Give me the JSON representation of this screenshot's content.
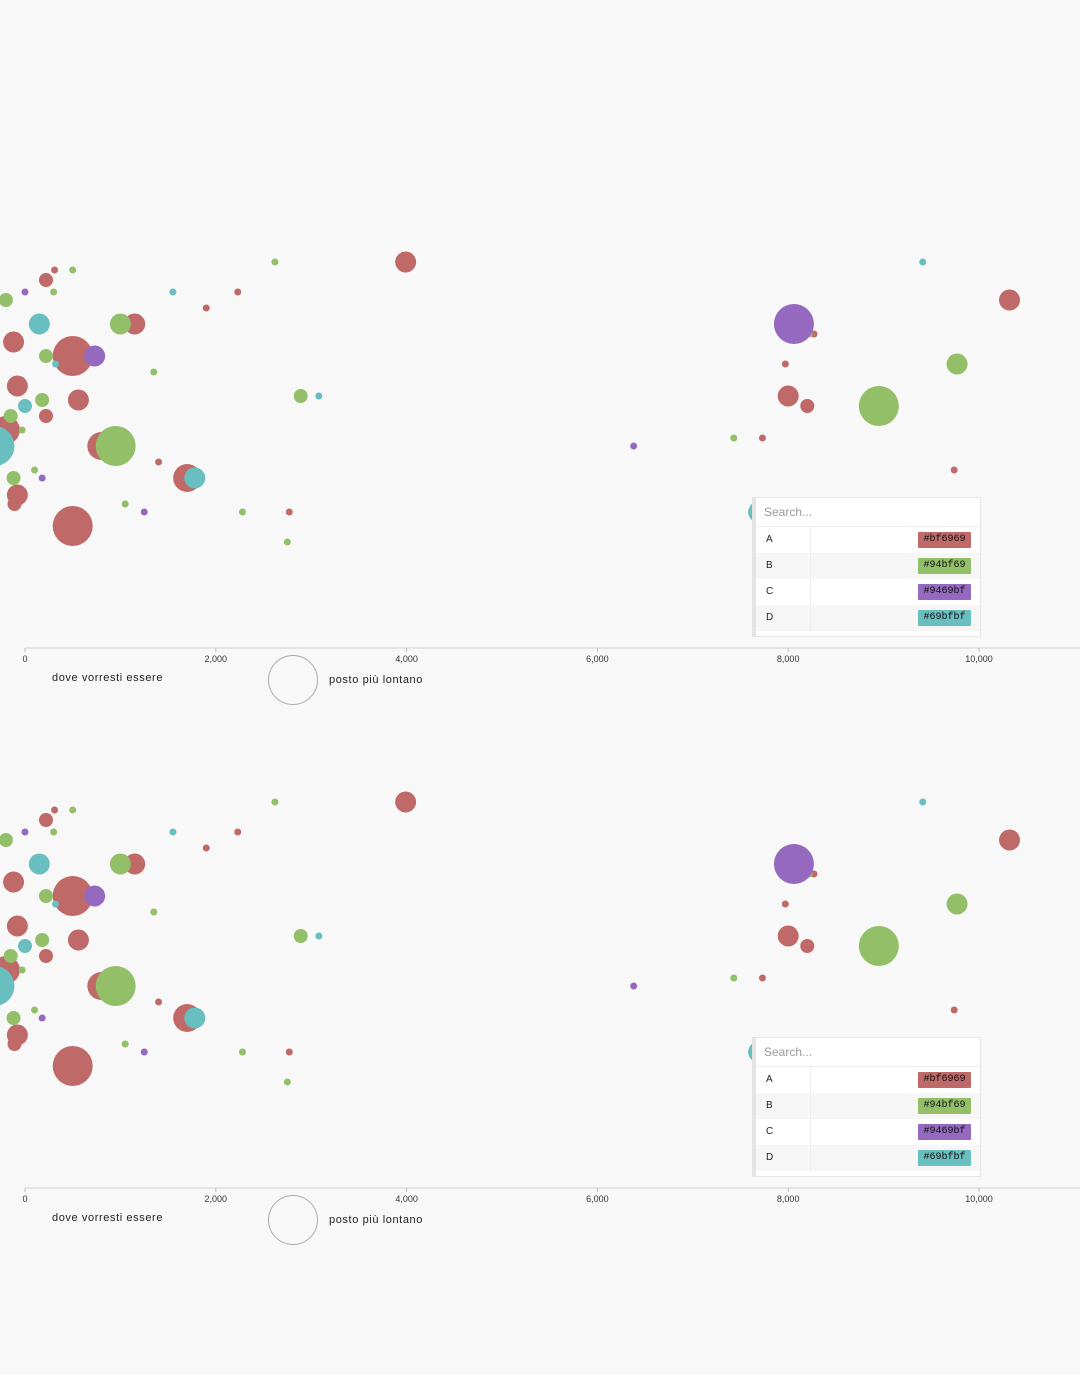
{
  "legend": {
    "search_placeholder": "Search...",
    "items": [
      {
        "key": "A",
        "color": "#bf6969",
        "label": "#bf6969"
      },
      {
        "key": "B",
        "color": "#94bf69",
        "label": "#94bf69"
      },
      {
        "key": "C",
        "color": "#9469bf",
        "label": "#9469bf"
      },
      {
        "key": "D",
        "color": "#69bfbf",
        "label": "#69bfbf"
      }
    ]
  },
  "size_legend_label": "posto più lontano",
  "color_legend_label": "dove vorresti essere",
  "chart_data": [
    {
      "type": "scatter",
      "xlabel": "",
      "ylabel": "",
      "x_ticks": [
        "0",
        "2,000",
        "4,000",
        "6,000",
        "8,000",
        "10,000"
      ],
      "xlim": [
        0,
        11000
      ],
      "series": [
        {
          "category": "A",
          "points": [
            {
              "x": -80,
              "s": 3
            },
            {
              "x": 220,
              "s": 2
            },
            {
              "x": 500,
              "s": 5
            },
            {
              "x": 800,
              "s": 4
            },
            {
              "x": 1150,
              "s": 3
            },
            {
              "x": 1700,
              "s": 4
            },
            {
              "x": 2230,
              "s": 1
            },
            {
              "x": 2770,
              "s": 1
            },
            {
              "x": 3990,
              "s": 3
            },
            {
              "x": 7780,
              "s": 3
            },
            {
              "x": 8000,
              "s": 3
            },
            {
              "x": 8200,
              "s": 2
            },
            {
              "x": 7970,
              "s": 1
            },
            {
              "x": 7730,
              "s": 1
            },
            {
              "x": 8270,
              "s": 1
            },
            {
              "x": 9740,
              "s": 1
            },
            {
              "x": 10320,
              "s": 3
            },
            {
              "x": -110,
              "s": 2
            },
            {
              "x": 310,
              "s": 1
            },
            {
              "x": 560,
              "s": 3
            },
            {
              "x": 450,
              "s": 1
            },
            {
              "x": -200,
              "s": 4
            },
            {
              "x": -120,
              "s": 3
            },
            {
              "x": 1400,
              "s": 1
            },
            {
              "x": 1900,
              "s": 1
            },
            {
              "x": -80,
              "s": 3
            },
            {
              "x": 220,
              "s": 2
            },
            {
              "x": 500,
              "s": 5
            }
          ]
        },
        {
          "category": "B",
          "points": [
            {
              "x": -150,
              "s": 2
            },
            {
              "x": 220,
              "s": 2
            },
            {
              "x": 950,
              "s": 5
            },
            {
              "x": 1000,
              "s": 3
            },
            {
              "x": -120,
              "s": 2
            },
            {
              "x": 300,
              "s": 1
            },
            {
              "x": 2280,
              "s": 1
            },
            {
              "x": 2620,
              "s": 1
            },
            {
              "x": 2750,
              "s": 1
            },
            {
              "x": 2890,
              "s": 2
            },
            {
              "x": 8950,
              "s": 5
            },
            {
              "x": 9770,
              "s": 3
            },
            {
              "x": 7430,
              "s": 1
            },
            {
              "x": 8220,
              "s": 1
            },
            {
              "x": 100,
              "s": 1
            },
            {
              "x": -200,
              "s": 2
            },
            {
              "x": 1050,
              "s": 1
            },
            {
              "x": 500,
              "s": 1
            },
            {
              "x": 180,
              "s": 2
            },
            {
              "x": 1350,
              "s": 1
            },
            {
              "x": -30,
              "s": 1
            }
          ]
        },
        {
          "category": "C",
          "points": [
            {
              "x": 730,
              "s": 3
            },
            {
              "x": 6380,
              "s": 1
            },
            {
              "x": 8060,
              "s": 5
            },
            {
              "x": 180,
              "s": 1
            },
            {
              "x": 0,
              "s": 1
            },
            {
              "x": 1250,
              "s": 1
            }
          ]
        },
        {
          "category": "D",
          "points": [
            {
              "x": -320,
              "s": 5
            },
            {
              "x": 150,
              "s": 3
            },
            {
              "x": 1780,
              "s": 3
            },
            {
              "x": 1550,
              "s": 1
            },
            {
              "x": 7690,
              "s": 3
            },
            {
              "x": 9410,
              "s": 1
            },
            {
              "x": 8180,
              "s": 1
            },
            {
              "x": 3080,
              "s": 1
            },
            {
              "x": 0,
              "s": 2
            },
            {
              "x": 320,
              "s": 1
            }
          ]
        }
      ]
    }
  ]
}
